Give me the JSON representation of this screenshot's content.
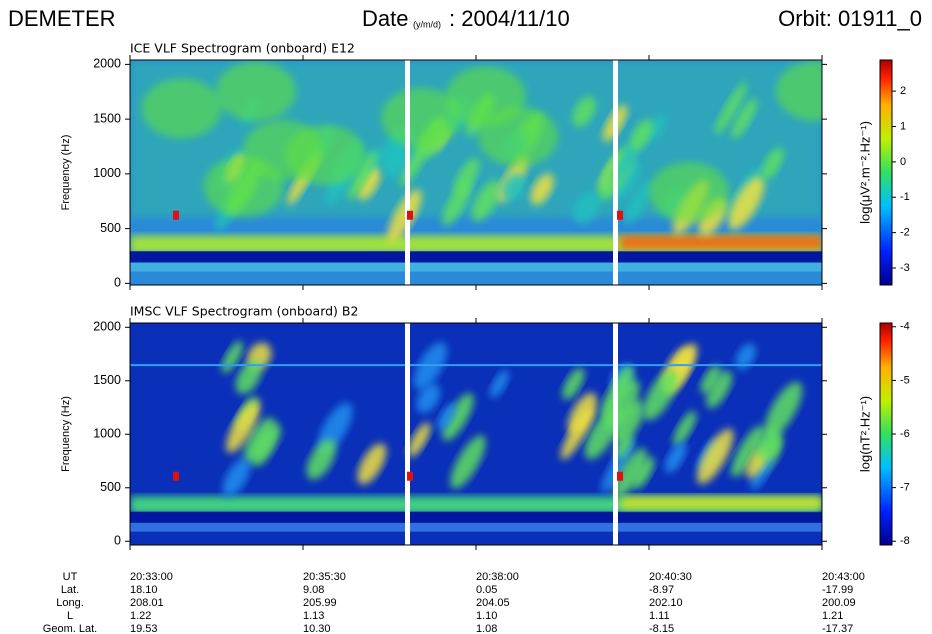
{
  "header": {
    "instrument": "DEMETER",
    "date_label": "Date",
    "date_unit": "(y/m/d)",
    "date_value": ": 2004/11/10",
    "orbit": "Orbit: 01911_0"
  },
  "chart_data": [
    {
      "type": "spectrogram",
      "title": "ICE VLF Spectrogram (onboard) E12",
      "y_label": "Frequency (Hz)",
      "ylim": [
        -15,
        2040
      ],
      "yticks": [
        0,
        500,
        1000,
        1500,
        2000
      ],
      "colorbar_label": "log(μV².m⁻².Hz⁻¹)",
      "clim": [
        -3.48,
        2.88
      ],
      "cticks": [
        -3,
        -2,
        -1,
        0,
        1,
        2
      ]
    },
    {
      "type": "spectrogram",
      "title": "IMSC VLF Spectrogram (onboard) B2",
      "y_label": "Frequency (Hz)",
      "ylim": [
        -35,
        2040
      ],
      "yticks": [
        0,
        500,
        1000,
        1500,
        2000
      ],
      "colorbar_label": "log(nT².Hz⁻¹)",
      "clim": [
        -8.07,
        -3.93
      ],
      "cticks": [
        -8,
        -7,
        -6,
        -5,
        -4
      ]
    }
  ],
  "ephemeris": {
    "rows": [
      {
        "label": "UT",
        "values": [
          "20:33:00",
          "20:35:30",
          "20:38:00",
          "20:40:30",
          "20:43:00"
        ]
      },
      {
        "label": "Lat.",
        "values": [
          "18.10",
          "9.08",
          "0.05",
          "-8.97",
          "-17.99"
        ]
      },
      {
        "label": "Long.",
        "values": [
          "208.01",
          "205.99",
          "204.05",
          "202.10",
          "200.09"
        ]
      },
      {
        "label": "L",
        "values": [
          "1.22",
          "1.13",
          "1.10",
          "1.11",
          "1.21"
        ]
      },
      {
        "label": "Geom. Lat.",
        "values": [
          "19.53",
          "10.30",
          "1.08",
          "-8.15",
          "-17.37"
        ]
      }
    ]
  }
}
